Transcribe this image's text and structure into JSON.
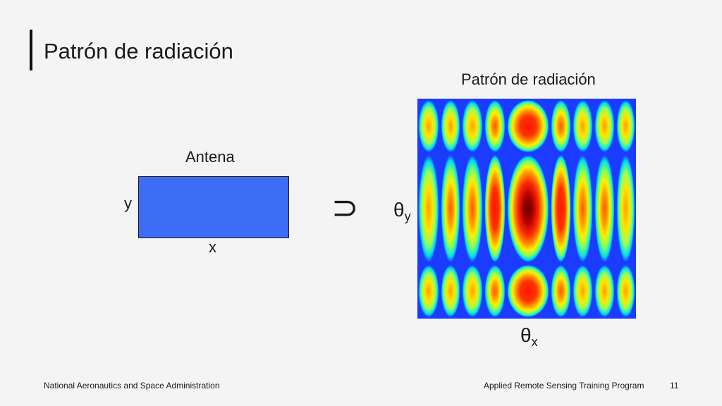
{
  "slide": {
    "title": "Patrón de radiación",
    "page_number": "11"
  },
  "diagram": {
    "antenna_label": "Antena",
    "y_label": "y",
    "x_label": "x",
    "transform_symbol": "⊃",
    "pattern_label": "Patrón de radiación",
    "theta_symbol": "θ",
    "theta_y_sub": "y",
    "theta_x_sub": "x",
    "colors": {
      "antenna_fill": "#3d6df5",
      "pattern_background": "#1b3cff"
    },
    "pattern": {
      "columns": 10,
      "rows": 3,
      "peak_column": 4,
      "peak_row": 1
    }
  },
  "footer": {
    "left": "National Aeronautics and Space Administration",
    "center": "Applied Remote Sensing Training Program"
  }
}
